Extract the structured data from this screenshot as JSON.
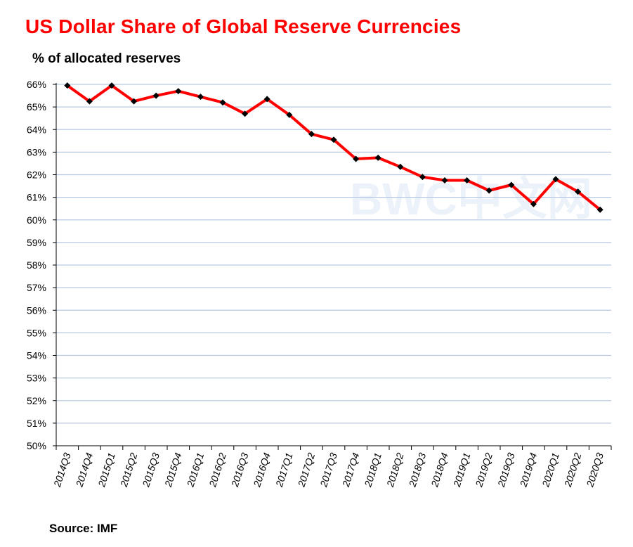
{
  "chart_data": {
    "type": "line",
    "title": "US Dollar  Share of Global  Reserve Currencies",
    "subtitle": "% of allocated reserves",
    "source": "Source: IMF",
    "watermark": "BWC中文网",
    "xlabel": "",
    "ylabel": "% of allocated reserves",
    "ylim": [
      50,
      66
    ],
    "grid": true,
    "series_color": "#ff0000",
    "marker_color": "#000000",
    "grid_color": "#b7c9e2",
    "categories": [
      "2014Q3",
      "2014Q4",
      "2015Q1",
      "2015Q2",
      "2015Q3",
      "2015Q4",
      "2016Q1",
      "2016Q2",
      "2016Q3",
      "2016Q4",
      "2017Q1",
      "2017Q2",
      "2017Q3",
      "2017Q4",
      "2018Q1",
      "2018Q2",
      "2018Q3",
      "2018Q4",
      "2019Q1",
      "2019Q2",
      "2019Q3",
      "2019Q4",
      "2020Q1",
      "2020Q2",
      "2020Q3"
    ],
    "values": [
      65.95,
      65.25,
      65.95,
      65.25,
      65.5,
      65.7,
      65.45,
      65.2,
      64.7,
      65.35,
      64.65,
      63.8,
      63.55,
      62.7,
      62.75,
      62.35,
      61.9,
      61.75,
      61.75,
      61.3,
      61.55,
      60.7,
      61.8,
      61.25,
      60.45
    ],
    "y_ticks": [
      "50%",
      "51%",
      "52%",
      "53%",
      "54%",
      "55%",
      "56%",
      "57%",
      "58%",
      "59%",
      "60%",
      "61%",
      "62%",
      "63%",
      "64%",
      "65%",
      "66%"
    ]
  }
}
